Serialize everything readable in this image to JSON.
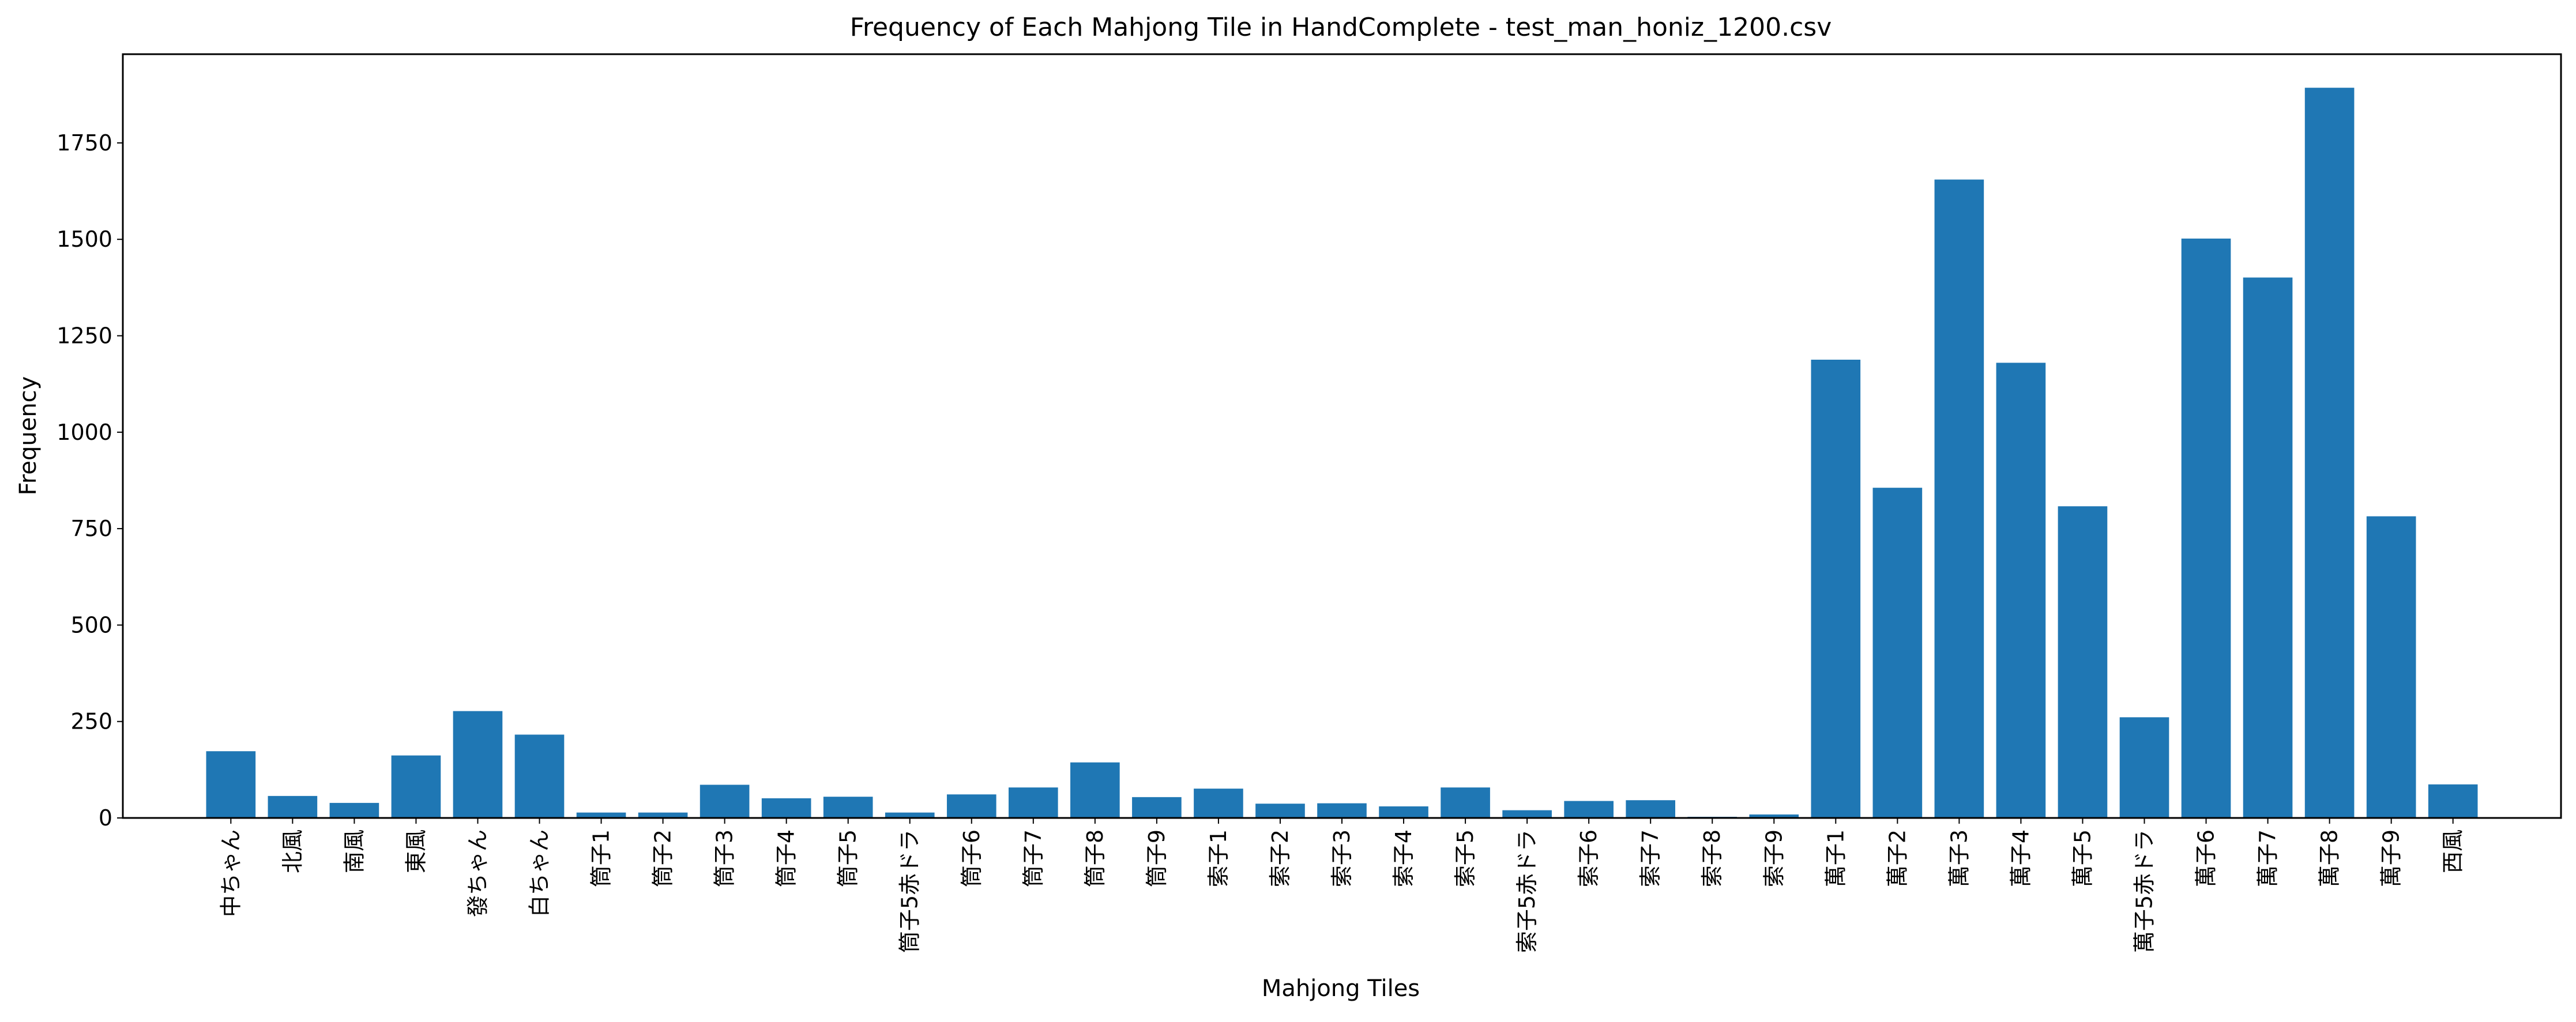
{
  "chart_data": {
    "type": "bar",
    "title": "Frequency of Each Mahjong Tile in HandComplete - test_man_honiz_1200.csv",
    "xlabel": "Mahjong Tiles",
    "ylabel": "Frequency",
    "ylim": [
      0,
      1980
    ],
    "yticks": [
      0,
      250,
      500,
      750,
      1000,
      1250,
      1500,
      1750
    ],
    "grid": false,
    "bar_color": "#1f77b4",
    "categories": [
      "中ちゃん",
      "北風",
      "南風",
      "東風",
      "發ちゃん",
      "白ちゃん",
      "筒子1",
      "筒子2",
      "筒子3",
      "筒子4",
      "筒子5",
      "筒子5赤ドラ",
      "筒子6",
      "筒子7",
      "筒子8",
      "筒子9",
      "索子1",
      "索子2",
      "索子3",
      "索子4",
      "索子5",
      "索子5赤ドラ",
      "索子6",
      "索子7",
      "索子8",
      "索子9",
      "萬子1",
      "萬子2",
      "萬子3",
      "萬子4",
      "萬子5",
      "萬子5赤ドラ",
      "萬子6",
      "萬子7",
      "萬子8",
      "萬子9",
      "西風"
    ],
    "values": [
      173,
      57,
      39,
      162,
      277,
      216,
      14,
      14,
      86,
      51,
      55,
      14,
      61,
      79,
      144,
      54,
      76,
      37,
      38,
      30,
      79,
      20,
      44,
      46,
      3,
      9,
      1188,
      856,
      1655,
      1180,
      808,
      261,
      1502,
      1401,
      1893,
      782,
      87
    ]
  }
}
